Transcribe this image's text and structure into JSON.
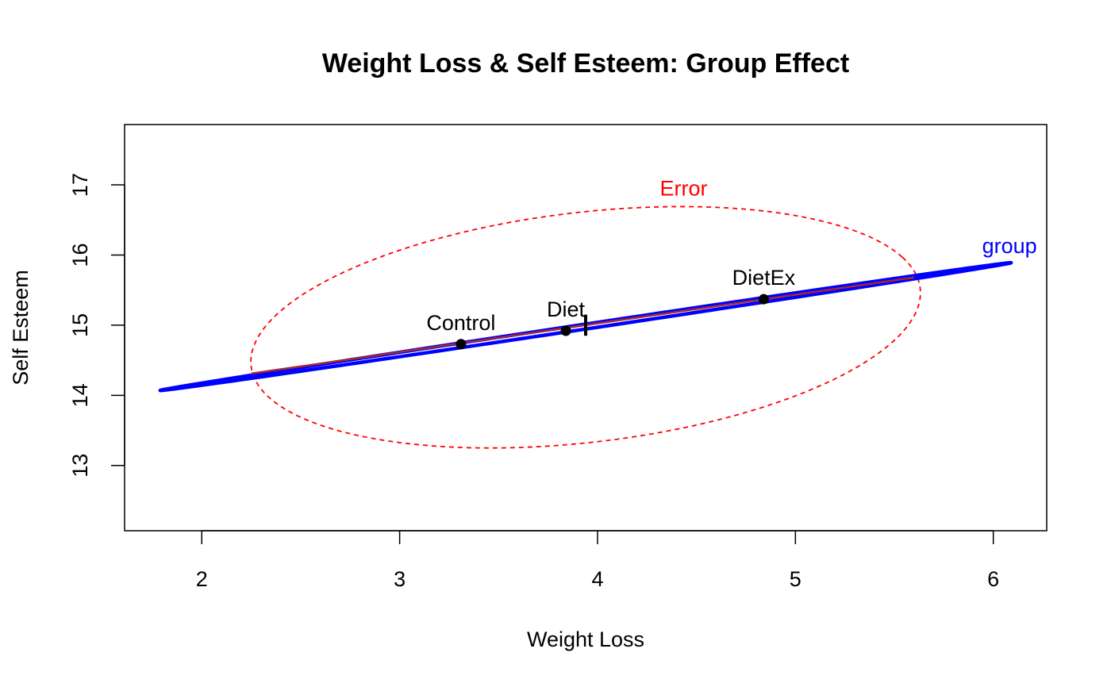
{
  "chart_data": {
    "type": "scatter",
    "title": "Weight Loss & Self Esteem: Group Effect",
    "xlabel": "Weight Loss",
    "ylabel": "Self Esteem",
    "xlim": [
      1.61,
      6.27
    ],
    "ylim": [
      12.07,
      17.86
    ],
    "xticks": [
      2,
      3,
      4,
      5,
      6
    ],
    "yticks": [
      13,
      14,
      15,
      16,
      17
    ],
    "points": [
      {
        "label": "Control",
        "x": 3.31,
        "y": 14.73
      },
      {
        "label": "Diet",
        "x": 3.84,
        "y": 14.92
      },
      {
        "label": "DietEx",
        "x": 4.84,
        "y": 15.37
      }
    ],
    "center_marker": {
      "x": 3.94,
      "y": 15.0,
      "y_low": 14.85,
      "y_high": 15.15
    },
    "group_line": {
      "from": [
        2.25,
        14.31
      ],
      "to": [
        5.6,
        15.68
      ],
      "color": "#A52A2A"
    },
    "ellipses": [
      {
        "name": "Error",
        "color": "#FF0000",
        "dashed": true,
        "center": [
          3.94,
          14.97
        ],
        "axis1": [
          1.6,
          1.0
        ],
        "axis2": [
          -0.55,
          1.4
        ]
      },
      {
        "name": "group",
        "color": "#0000FF",
        "dashed": false,
        "center": [
          3.94,
          14.98
        ],
        "axis1": [
          2.15,
          0.91
        ],
        "axis2": [
          -0.012,
          0.03
        ]
      }
    ],
    "grid": false,
    "legend": "none"
  }
}
